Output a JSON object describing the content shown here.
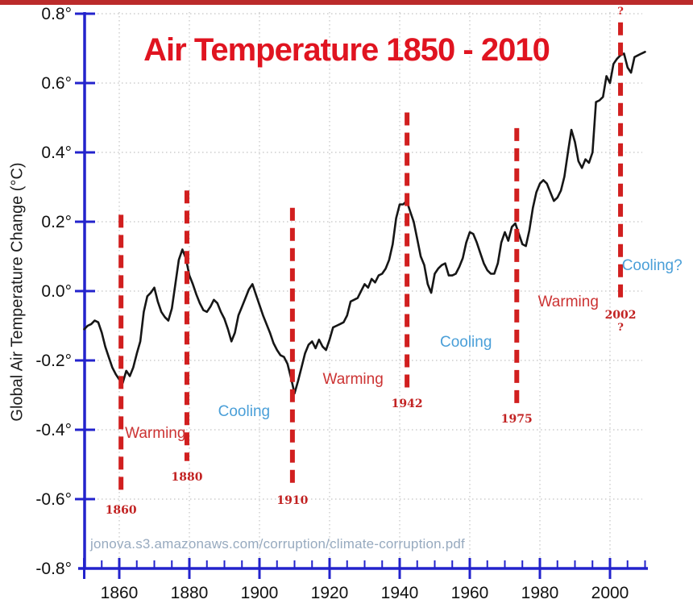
{
  "page": {
    "title": "Air Temperature 1850 - 2010",
    "watermark": "jonova.s3.amazonaws.com/corruption/climate-corruption.pdf"
  },
  "y_axis": {
    "label": "Global Air Temperature Change  (°C)",
    "tick_labels": [
      "0.8°",
      "0.6°",
      "0.4°",
      "0.2°",
      "0.0°",
      "-0.2°",
      "-0.4°",
      "-0.6°",
      "-0.8°"
    ],
    "tick_values": [
      0.8,
      0.6,
      0.4,
      0.2,
      0.0,
      -0.2,
      -0.4,
      -0.6,
      -0.8
    ]
  },
  "x_axis": {
    "tick_labels": [
      "1860",
      "1880",
      "1900",
      "1920",
      "1940",
      "1960",
      "1980",
      "2000"
    ],
    "tick_values": [
      1860,
      1880,
      1900,
      1920,
      1940,
      1960,
      1980,
      2000
    ],
    "minor_tick_step": 5,
    "range": [
      1850,
      2010
    ]
  },
  "colors": {
    "axis_blue": "#2323cc",
    "line_black": "#161616",
    "marker_red": "#d11f1f",
    "warming_text": "#cc3333",
    "cooling_text": "#4a9fd8",
    "title_red": "#e01420",
    "year_label_red": "#c22222",
    "watermark_gray_blue": "#97aabf",
    "grid_gray": "#c4c4c4",
    "tick_text": "#111111",
    "top_strip_red": "#bb2b2b"
  },
  "chart_data": {
    "type": "line",
    "title": "Air Temperature 1850 - 2010",
    "xlabel": "",
    "ylabel": "Global Air Temperature Change (°C)",
    "xlim": [
      1850,
      2010
    ],
    "ylim": [
      -0.8,
      0.8
    ],
    "grid": true,
    "x": [
      1850,
      1851,
      1852,
      1853,
      1854,
      1855,
      1856,
      1857,
      1858,
      1859,
      1860,
      1861,
      1862,
      1863,
      1864,
      1865,
      1866,
      1867,
      1868,
      1869,
      1870,
      1871,
      1872,
      1873,
      1874,
      1875,
      1876,
      1877,
      1878,
      1879,
      1880,
      1881,
      1882,
      1883,
      1884,
      1885,
      1886,
      1887,
      1888,
      1889,
      1890,
      1891,
      1892,
      1893,
      1894,
      1895,
      1896,
      1897,
      1898,
      1899,
      1900,
      1901,
      1902,
      1903,
      1904,
      1905,
      1906,
      1907,
      1908,
      1909,
      1910,
      1911,
      1912,
      1913,
      1914,
      1915,
      1916,
      1917,
      1918,
      1919,
      1920,
      1921,
      1922,
      1923,
      1924,
      1925,
      1926,
      1927,
      1928,
      1929,
      1930,
      1931,
      1932,
      1933,
      1934,
      1935,
      1936,
      1937,
      1938,
      1939,
      1940,
      1941,
      1942,
      1943,
      1944,
      1945,
      1946,
      1947,
      1948,
      1949,
      1950,
      1951,
      1952,
      1953,
      1954,
      1955,
      1956,
      1957,
      1958,
      1959,
      1960,
      1961,
      1962,
      1963,
      1964,
      1965,
      1966,
      1967,
      1968,
      1969,
      1970,
      1971,
      1972,
      1973,
      1974,
      1975,
      1976,
      1977,
      1978,
      1979,
      1980,
      1981,
      1982,
      1983,
      1984,
      1985,
      1986,
      1987,
      1988,
      1989,
      1990,
      1991,
      1992,
      1993,
      1994,
      1995,
      1996,
      1997,
      1998,
      1999,
      2000,
      2001,
      2002,
      2003,
      2004,
      2005,
      2006,
      2007,
      2008,
      2009,
      2010
    ],
    "series": [
      {
        "name": "Global air temperature change (°C)",
        "values": [
          -0.11,
          -0.1,
          -0.095,
          -0.085,
          -0.09,
          -0.12,
          -0.16,
          -0.19,
          -0.22,
          -0.24,
          -0.255,
          -0.265,
          -0.23,
          -0.245,
          -0.22,
          -0.18,
          -0.145,
          -0.06,
          -0.015,
          -0.005,
          0.01,
          -0.03,
          -0.06,
          -0.075,
          -0.085,
          -0.05,
          0.02,
          0.09,
          0.12,
          0.095,
          0.045,
          0.02,
          -0.01,
          -0.035,
          -0.055,
          -0.06,
          -0.045,
          -0.025,
          -0.035,
          -0.06,
          -0.08,
          -0.11,
          -0.145,
          -0.12,
          -0.07,
          -0.045,
          -0.02,
          0.005,
          0.02,
          -0.01,
          -0.04,
          -0.07,
          -0.095,
          -0.12,
          -0.15,
          -0.17,
          -0.185,
          -0.19,
          -0.21,
          -0.25,
          -0.295,
          -0.26,
          -0.22,
          -0.18,
          -0.155,
          -0.145,
          -0.165,
          -0.14,
          -0.16,
          -0.17,
          -0.14,
          -0.105,
          -0.1,
          -0.095,
          -0.09,
          -0.07,
          -0.03,
          -0.025,
          -0.02,
          0.0,
          0.02,
          0.01,
          0.035,
          0.025,
          0.045,
          0.05,
          0.065,
          0.09,
          0.135,
          0.21,
          0.25,
          0.25,
          0.26,
          0.23,
          0.2,
          0.15,
          0.1,
          0.075,
          0.02,
          -0.005,
          0.05,
          0.065,
          0.075,
          0.08,
          0.045,
          0.045,
          0.05,
          0.07,
          0.095,
          0.14,
          0.17,
          0.165,
          0.14,
          0.11,
          0.08,
          0.06,
          0.05,
          0.05,
          0.08,
          0.14,
          0.17,
          0.145,
          0.185,
          0.195,
          0.165,
          0.135,
          0.13,
          0.175,
          0.24,
          0.285,
          0.31,
          0.32,
          0.31,
          0.285,
          0.26,
          0.27,
          0.29,
          0.33,
          0.4,
          0.465,
          0.43,
          0.375,
          0.355,
          0.38,
          0.37,
          0.4,
          0.545,
          0.55,
          0.56,
          0.62,
          0.6,
          0.655,
          0.67,
          0.68,
          0.685,
          0.645,
          0.63,
          0.675,
          0.68,
          0.685,
          0.69
        ]
      }
    ],
    "markers": [
      {
        "label": "1860",
        "year": 1860.5,
        "v_top": 0.22,
        "v_bottom": -0.58,
        "label_value": -0.633
      },
      {
        "label": "1880",
        "year": 1879.3,
        "v_top": 0.29,
        "v_bottom": -0.49,
        "label_value": -0.537
      },
      {
        "label": "1910",
        "year": 1909.4,
        "v_top": 0.24,
        "v_bottom": -0.565,
        "label_value": -0.605
      },
      {
        "label": "1942",
        "year": 1942.1,
        "v_top": 0.515,
        "v_bottom": -0.29,
        "label_value": -0.326
      },
      {
        "label": "1975",
        "year": 1973.4,
        "v_top": 0.47,
        "v_bottom": -0.34,
        "label_value": -0.37
      },
      {
        "label": "2002",
        "year": 2003.0,
        "v_top": 0.775,
        "v_bottom": -0.035,
        "label_value": -0.07,
        "q_text": "?",
        "q_above_value": 0.805,
        "q_below_value": -0.107
      }
    ],
    "phase_labels": [
      {
        "text": "Warming",
        "type": "warming",
        "year": 1870.3,
        "value": -0.412
      },
      {
        "text": "Cooling",
        "type": "cooling",
        "year": 1895.6,
        "value": -0.349
      },
      {
        "text": "Warming",
        "type": "warming",
        "year": 1926.7,
        "value": -0.256
      },
      {
        "text": "Cooling",
        "type": "cooling",
        "year": 1958.9,
        "value": -0.149
      },
      {
        "text": "Warming",
        "type": "warming",
        "year": 1988.1,
        "value": -0.033
      },
      {
        "text": "Cooling?",
        "type": "cooling",
        "year": 2012.0,
        "value": 0.072
      }
    ],
    "legend": null
  }
}
